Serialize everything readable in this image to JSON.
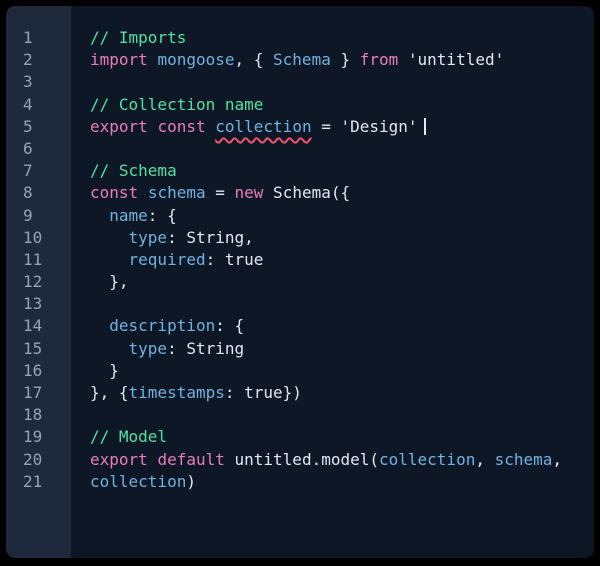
{
  "editor": {
    "language": "javascript",
    "colors": {
      "frame_bg": "#000000",
      "code_bg": "#0e1726",
      "gutter_bg": "#1e293b",
      "line_number": "#94a3b8",
      "keyword": "#e87dc0",
      "identifier": "#6fb3e0",
      "comment": "#4fe3a3",
      "plain": "#e2e8f0",
      "error_underline": "#ef5569"
    },
    "caret_line": 5,
    "lines": [
      {
        "n": "1",
        "caret": false,
        "tokens": [
          {
            "t": "// Imports",
            "c": "com"
          }
        ]
      },
      {
        "n": "2",
        "caret": false,
        "tokens": [
          {
            "t": "import",
            "c": "kw"
          },
          {
            "t": " ",
            "c": "pln"
          },
          {
            "t": "mongoose",
            "c": "id"
          },
          {
            "t": ", { ",
            "c": "pln"
          },
          {
            "t": "Schema",
            "c": "id"
          },
          {
            "t": " } ",
            "c": "pln"
          },
          {
            "t": "from",
            "c": "kw"
          },
          {
            "t": " 'untitled'",
            "c": "pln"
          }
        ]
      },
      {
        "n": "3",
        "caret": false,
        "tokens": []
      },
      {
        "n": "4",
        "caret": false,
        "tokens": [
          {
            "t": "// Collection name",
            "c": "com"
          }
        ]
      },
      {
        "n": "5",
        "caret": true,
        "tokens": [
          {
            "t": "export",
            "c": "kw"
          },
          {
            "t": " ",
            "c": "pln"
          },
          {
            "t": "const",
            "c": "kw"
          },
          {
            "t": " ",
            "c": "pln"
          },
          {
            "t": "collection",
            "c": "err"
          },
          {
            "t": " = 'Design'",
            "c": "pln"
          }
        ]
      },
      {
        "n": "6",
        "caret": false,
        "tokens": []
      },
      {
        "n": "7",
        "caret": false,
        "tokens": [
          {
            "t": "// Schema",
            "c": "com"
          }
        ]
      },
      {
        "n": "8",
        "caret": false,
        "tokens": [
          {
            "t": "const",
            "c": "kw"
          },
          {
            "t": " ",
            "c": "pln"
          },
          {
            "t": "schema",
            "c": "id"
          },
          {
            "t": " = ",
            "c": "pln"
          },
          {
            "t": "new",
            "c": "kw"
          },
          {
            "t": " Schema({",
            "c": "pln"
          }
        ]
      },
      {
        "n": "9",
        "caret": false,
        "tokens": [
          {
            "t": "  ",
            "c": "pln"
          },
          {
            "t": "name",
            "c": "id"
          },
          {
            "t": ": {",
            "c": "pln"
          }
        ]
      },
      {
        "n": "10",
        "caret": false,
        "tokens": [
          {
            "t": "    ",
            "c": "pln"
          },
          {
            "t": "type",
            "c": "id"
          },
          {
            "t": ": String,",
            "c": "pln"
          }
        ]
      },
      {
        "n": "11",
        "caret": false,
        "tokens": [
          {
            "t": "    ",
            "c": "pln"
          },
          {
            "t": "required",
            "c": "id"
          },
          {
            "t": ": true",
            "c": "pln"
          }
        ]
      },
      {
        "n": "12",
        "caret": false,
        "tokens": [
          {
            "t": "  },",
            "c": "pln"
          }
        ]
      },
      {
        "n": "13",
        "caret": false,
        "tokens": []
      },
      {
        "n": "14",
        "caret": false,
        "tokens": [
          {
            "t": "  ",
            "c": "pln"
          },
          {
            "t": "description",
            "c": "id"
          },
          {
            "t": ": {",
            "c": "pln"
          }
        ]
      },
      {
        "n": "15",
        "caret": false,
        "tokens": [
          {
            "t": "    ",
            "c": "pln"
          },
          {
            "t": "type",
            "c": "id"
          },
          {
            "t": ": String",
            "c": "pln"
          }
        ]
      },
      {
        "n": "16",
        "caret": false,
        "tokens": [
          {
            "t": "  }",
            "c": "pln"
          }
        ]
      },
      {
        "n": "17",
        "caret": false,
        "tokens": [
          {
            "t": "}, {",
            "c": "pln"
          },
          {
            "t": "timestamps",
            "c": "id"
          },
          {
            "t": ": true})",
            "c": "pln"
          }
        ]
      },
      {
        "n": "18",
        "caret": false,
        "tokens": []
      },
      {
        "n": "19",
        "caret": false,
        "tokens": [
          {
            "t": "// Model",
            "c": "com"
          }
        ]
      },
      {
        "n": "20",
        "caret": false,
        "tokens": [
          {
            "t": "export",
            "c": "kw"
          },
          {
            "t": " ",
            "c": "pln"
          },
          {
            "t": "default",
            "c": "kw"
          },
          {
            "t": " untitled.model(",
            "c": "pln"
          },
          {
            "t": "collection",
            "c": "id"
          },
          {
            "t": ", ",
            "c": "pln"
          },
          {
            "t": "schema",
            "c": "id"
          },
          {
            "t": ",",
            "c": "pln"
          }
        ]
      },
      {
        "n": "21",
        "caret": false,
        "tokens": [
          {
            "t": "collection",
            "c": "id"
          },
          {
            "t": ")",
            "c": "pln"
          }
        ]
      }
    ]
  }
}
